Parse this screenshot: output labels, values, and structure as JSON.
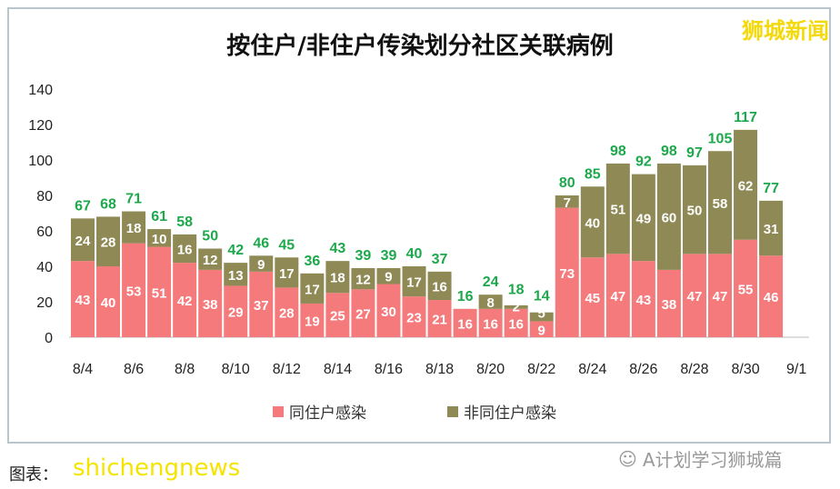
{
  "brand": "狮城新闻",
  "watermark": "shichengnews",
  "credit": "图表：",
  "wechat": "A计划学习狮城篇",
  "colors": {
    "same": "#F57A7C",
    "other": "#8F8A55",
    "total": "#1DA84C"
  },
  "chart_data": {
    "type": "bar",
    "stacked": true,
    "title": "按住户/非住户传染划分社区关联病例",
    "categories": [
      "8/4",
      "8/5",
      "8/6",
      "8/7",
      "8/8",
      "8/9",
      "8/10",
      "8/11",
      "8/12",
      "8/13",
      "8/14",
      "8/15",
      "8/16",
      "8/17",
      "8/18",
      "8/19",
      "8/20",
      "8/21",
      "8/22",
      "8/23",
      "8/24",
      "8/25",
      "8/26",
      "8/27",
      "8/28",
      "8/29",
      "8/30",
      "8/31"
    ],
    "xticks": [
      "8/4",
      "8/6",
      "8/8",
      "8/10",
      "8/12",
      "8/14",
      "8/16",
      "8/18",
      "8/20",
      "8/22",
      "8/24",
      "8/26",
      "8/28",
      "8/30",
      "9/1"
    ],
    "series": [
      {
        "name": "同住户感染",
        "values": [
          43,
          40,
          53,
          51,
          42,
          38,
          29,
          37,
          28,
          19,
          25,
          27,
          30,
          23,
          21,
          16,
          16,
          16,
          9,
          73,
          45,
          47,
          43,
          38,
          47,
          47,
          55,
          46
        ]
      },
      {
        "name": "非同住户感染",
        "values": [
          24,
          28,
          18,
          10,
          16,
          12,
          13,
          9,
          17,
          17,
          18,
          12,
          9,
          17,
          16,
          0,
          8,
          2,
          5,
          7,
          40,
          51,
          49,
          60,
          50,
          58,
          62,
          31
        ]
      }
    ],
    "totals": [
      67,
      68,
      71,
      61,
      58,
      50,
      42,
      46,
      45,
      36,
      43,
      39,
      39,
      40,
      37,
      16,
      24,
      18,
      14,
      80,
      85,
      98,
      92,
      98,
      97,
      105,
      117,
      77
    ],
    "ylim": [
      0,
      140
    ],
    "yticks": [
      0,
      20,
      40,
      60,
      80,
      100,
      120,
      140
    ],
    "grid": false,
    "legend": "bottom"
  }
}
